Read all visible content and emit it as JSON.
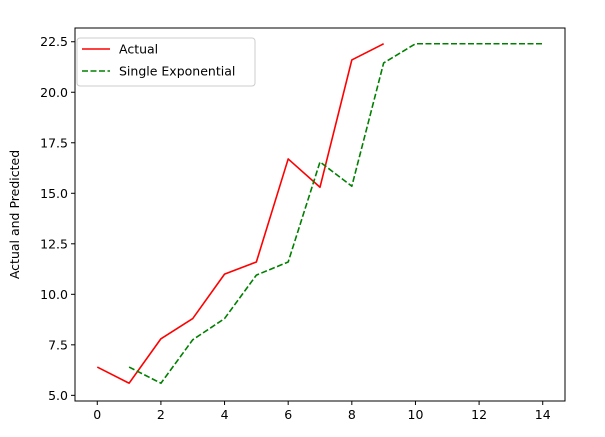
{
  "chart_data": {
    "type": "line",
    "title": "",
    "xlabel": "",
    "ylabel": "Actual and Predicted",
    "xlim": [
      -0.7,
      14.7
    ],
    "ylim": [
      4.72,
      23.18
    ],
    "xticks": [
      0,
      2,
      4,
      6,
      8,
      10,
      12,
      14
    ],
    "yticks": [
      5.0,
      7.5,
      10.0,
      12.5,
      15.0,
      17.5,
      20.0,
      22.5
    ],
    "grid": false,
    "legend_position": "top-left",
    "series": [
      {
        "name": "Actual",
        "color": "#ff0000",
        "style": "solid",
        "x": [
          0,
          1,
          2,
          3,
          4,
          5,
          6,
          7,
          8,
          9
        ],
        "y": [
          6.4,
          5.6,
          7.8,
          8.8,
          11.0,
          11.6,
          16.7,
          15.3,
          21.6,
          22.4
        ]
      },
      {
        "name": "Single Exponential",
        "color": "#008000",
        "style": "dashed",
        "x": [
          1,
          2,
          3,
          4,
          5,
          6,
          7,
          8,
          9,
          10,
          11,
          12,
          13,
          14
        ],
        "y": [
          6.4,
          5.6,
          7.75,
          8.8,
          10.95,
          11.6,
          16.55,
          15.35,
          21.45,
          22.4,
          22.4,
          22.4,
          22.4,
          22.4
        ]
      }
    ]
  }
}
